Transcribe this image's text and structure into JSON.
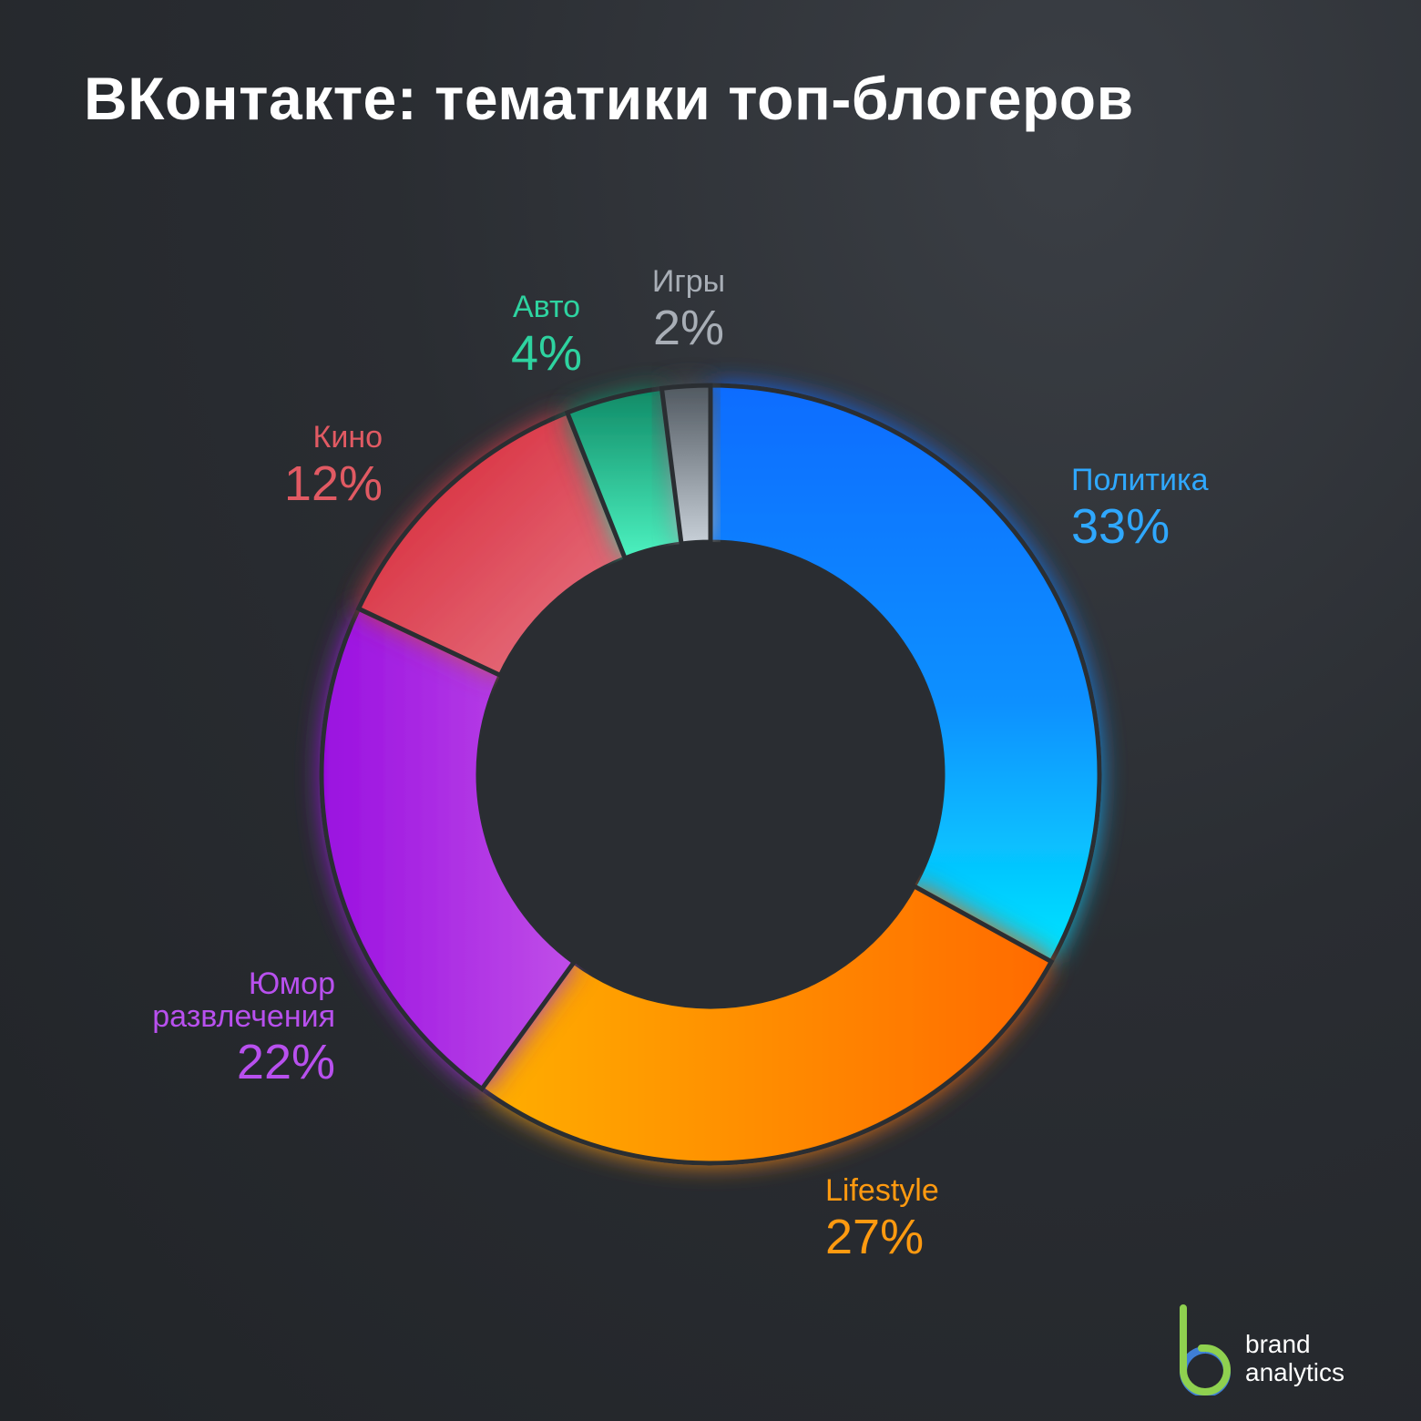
{
  "title": "ВКонтакте: тематики топ-блогеров",
  "chart_data": {
    "type": "pie",
    "donut": true,
    "categories": [
      "Политика",
      "Lifestyle",
      "Юмор развлечения",
      "Кино",
      "Авто",
      "Игры"
    ],
    "values": [
      33,
      27,
      22,
      12,
      4,
      2
    ],
    "value_labels": [
      "33%",
      "27%",
      "22%",
      "12%",
      "4%",
      "2%"
    ],
    "colors": [
      "#1e90ff",
      "#ff8a00",
      "#b23ee6",
      "#e04050",
      "#1fb38a",
      "#9aa3ad"
    ],
    "label_colors": [
      "#2fa8ff",
      "#ff9a10",
      "#b850ee",
      "#e15a63",
      "#2ed3a0",
      "#a8aeb6"
    ]
  },
  "labels": [
    {
      "name": "Политика",
      "pct": "33%"
    },
    {
      "name": "Lifestyle",
      "pct": "27%"
    },
    {
      "name_line1": "Юмор",
      "name_line2": "развлечения",
      "pct": "22%"
    },
    {
      "name": "Кино",
      "pct": "12%"
    },
    {
      "name": "Авто",
      "pct": "4%"
    },
    {
      "name": "Игры",
      "pct": "2%"
    }
  ],
  "logo": {
    "line1": "brand",
    "line2": "analytics"
  }
}
